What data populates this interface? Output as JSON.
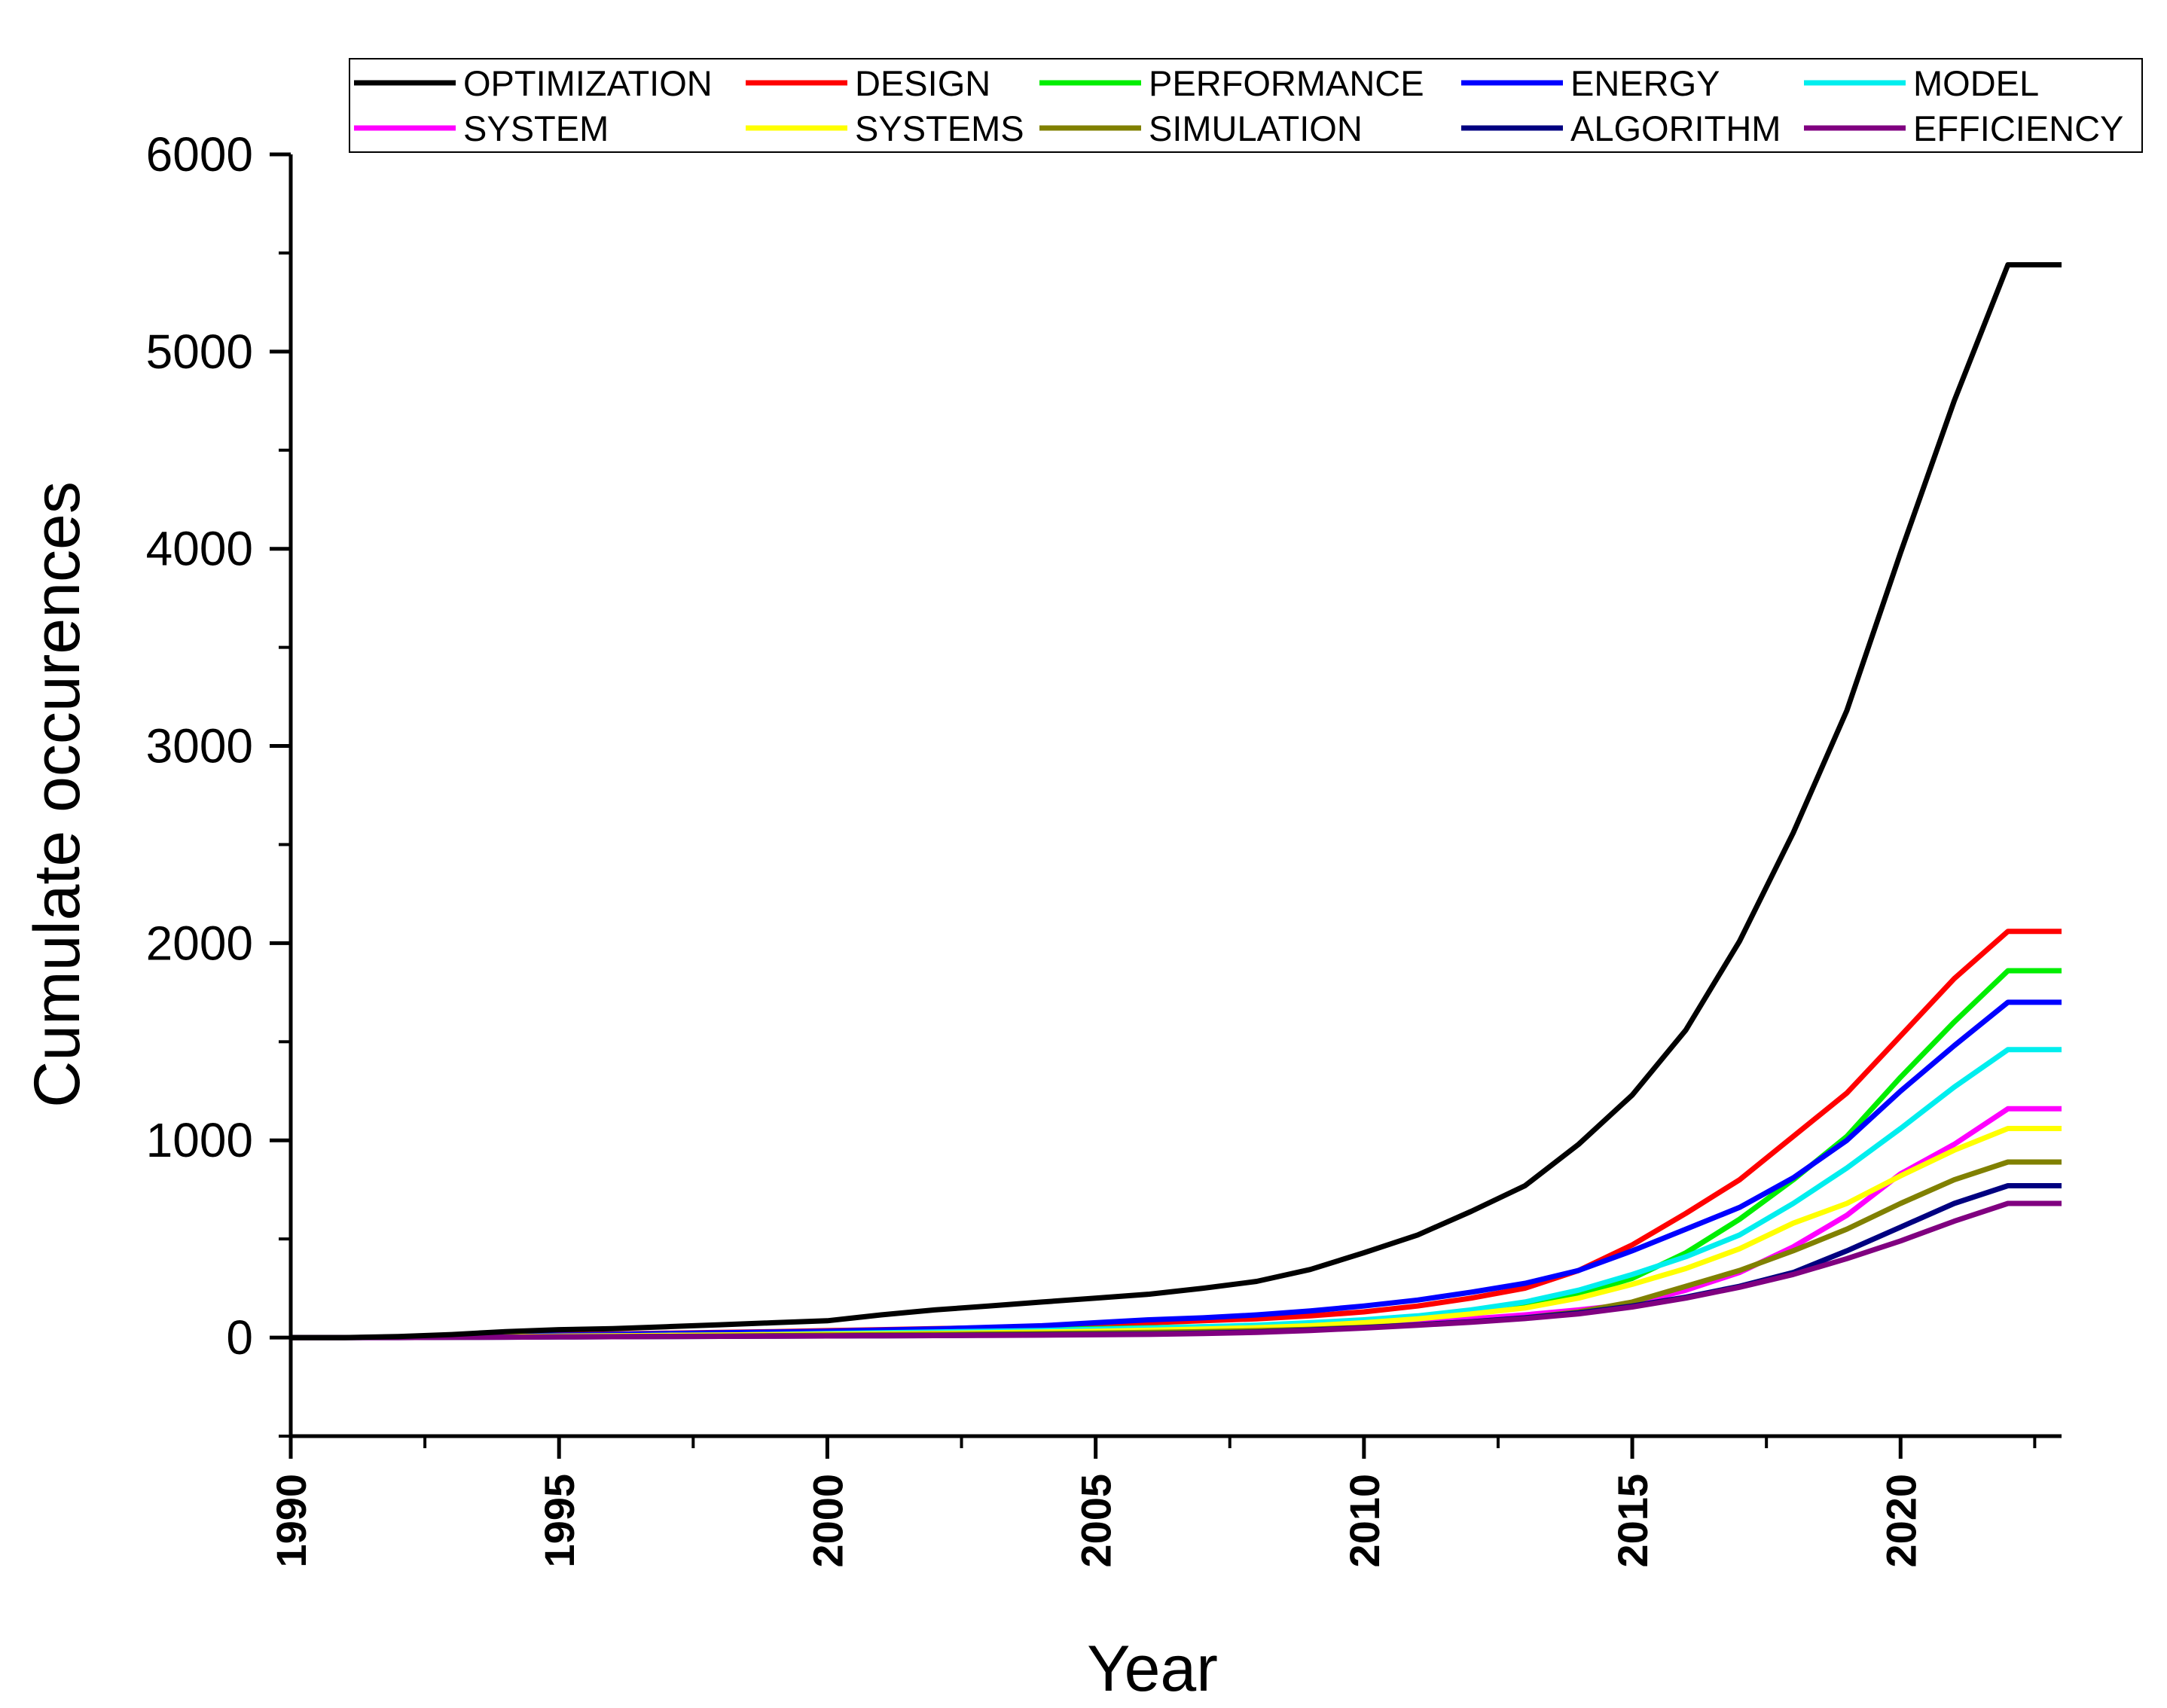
{
  "chart_data": {
    "type": "line",
    "title": "",
    "xlabel": "Year",
    "ylabel": "Cumulate occurences",
    "xlim": [
      1990,
      2023
    ],
    "ylim": [
      -500,
      6000
    ],
    "x_ticks": [
      "1990",
      "1995",
      "2000",
      "2005",
      "2010",
      "2015",
      "2020"
    ],
    "y_ticks": [
      "0",
      "1000",
      "2000",
      "3000",
      "4000",
      "5000",
      "6000"
    ],
    "grid": false,
    "legend_position": "top",
    "x": [
      1990,
      1991,
      1992,
      1993,
      1994,
      1995,
      1996,
      1997,
      1998,
      1999,
      2000,
      2001,
      2002,
      2003,
      2004,
      2005,
      2006,
      2007,
      2008,
      2009,
      2010,
      2011,
      2012,
      2013,
      2014,
      2015,
      2016,
      2017,
      2018,
      2019,
      2020,
      2021,
      2022,
      2023
    ],
    "series": [
      {
        "name": "OPTIMIZATION",
        "color": "#000000",
        "values": [
          0,
          0,
          5,
          15,
          30,
          40,
          45,
          55,
          65,
          75,
          85,
          115,
          140,
          160,
          180,
          200,
          220,
          250,
          285,
          345,
          430,
          520,
          640,
          770,
          980,
          1230,
          1560,
          2010,
          2560,
          3180,
          3980,
          4750,
          5440,
          5440
        ]
      },
      {
        "name": "DESIGN",
        "color": "#ff0000",
        "values": [
          0,
          0,
          2,
          5,
          10,
          15,
          18,
          22,
          26,
          30,
          35,
          40,
          45,
          50,
          55,
          65,
          75,
          85,
          95,
          110,
          130,
          160,
          200,
          250,
          340,
          470,
          630,
          800,
          1020,
          1240,
          1530,
          1820,
          2060,
          2060
        ]
      },
      {
        "name": "PERFORMANCE",
        "color": "#00ee00",
        "values": [
          0,
          0,
          1,
          3,
          5,
          8,
          10,
          12,
          15,
          18,
          22,
          26,
          30,
          35,
          40,
          45,
          50,
          55,
          60,
          70,
          85,
          105,
          130,
          165,
          220,
          300,
          430,
          600,
          800,
          1020,
          1320,
          1600,
          1860,
          1860
        ]
      },
      {
        "name": "ENERGY",
        "color": "#0000ff",
        "values": [
          0,
          0,
          2,
          5,
          8,
          12,
          16,
          20,
          24,
          28,
          32,
          38,
          44,
          52,
          60,
          75,
          90,
          100,
          115,
          135,
          160,
          190,
          230,
          275,
          340,
          440,
          550,
          660,
          810,
          1000,
          1250,
          1480,
          1700,
          1700
        ]
      },
      {
        "name": "MODEL",
        "color": "#00eeee",
        "values": [
          0,
          0,
          1,
          3,
          5,
          7,
          9,
          11,
          13,
          16,
          20,
          24,
          28,
          32,
          36,
          42,
          48,
          55,
          63,
          75,
          90,
          110,
          140,
          180,
          240,
          320,
          410,
          520,
          680,
          860,
          1060,
          1270,
          1460,
          1460
        ]
      },
      {
        "name": "SYSTEM",
        "color": "#ff00ff",
        "values": [
          0,
          0,
          1,
          2,
          4,
          6,
          8,
          10,
          12,
          14,
          16,
          18,
          20,
          22,
          25,
          28,
          32,
          36,
          42,
          50,
          60,
          75,
          95,
          115,
          140,
          170,
          240,
          330,
          460,
          620,
          830,
          980,
          1160,
          1160
        ]
      },
      {
        "name": "SYSTEMS",
        "color": "#ffff00",
        "values": [
          0,
          0,
          1,
          3,
          5,
          7,
          9,
          11,
          13,
          15,
          17,
          19,
          21,
          24,
          28,
          32,
          37,
          43,
          50,
          60,
          75,
          95,
          120,
          150,
          200,
          270,
          350,
          450,
          580,
          680,
          820,
          950,
          1060,
          1060
        ]
      },
      {
        "name": "SIMULATION",
        "color": "#808000",
        "values": [
          0,
          0,
          1,
          2,
          3,
          4,
          5,
          6,
          8,
          10,
          12,
          14,
          16,
          18,
          20,
          23,
          26,
          30,
          35,
          42,
          52,
          65,
          80,
          100,
          130,
          180,
          260,
          340,
          440,
          550,
          680,
          800,
          890,
          890
        ]
      },
      {
        "name": "ALGORITHM",
        "color": "#000080",
        "values": [
          0,
          0,
          0,
          1,
          2,
          3,
          4,
          5,
          6,
          7,
          8,
          9,
          10,
          12,
          14,
          16,
          18,
          22,
          28,
          38,
          50,
          65,
          80,
          100,
          125,
          160,
          205,
          260,
          330,
          440,
          560,
          680,
          770,
          770
        ]
      },
      {
        "name": "EFFICIENCY",
        "color": "#800080",
        "values": [
          0,
          0,
          0,
          1,
          2,
          3,
          4,
          5,
          6,
          7,
          8,
          9,
          10,
          11,
          12,
          14,
          16,
          20,
          26,
          36,
          48,
          62,
          78,
          96,
          120,
          155,
          200,
          255,
          320,
          400,
          490,
          590,
          680,
          680
        ]
      }
    ]
  }
}
